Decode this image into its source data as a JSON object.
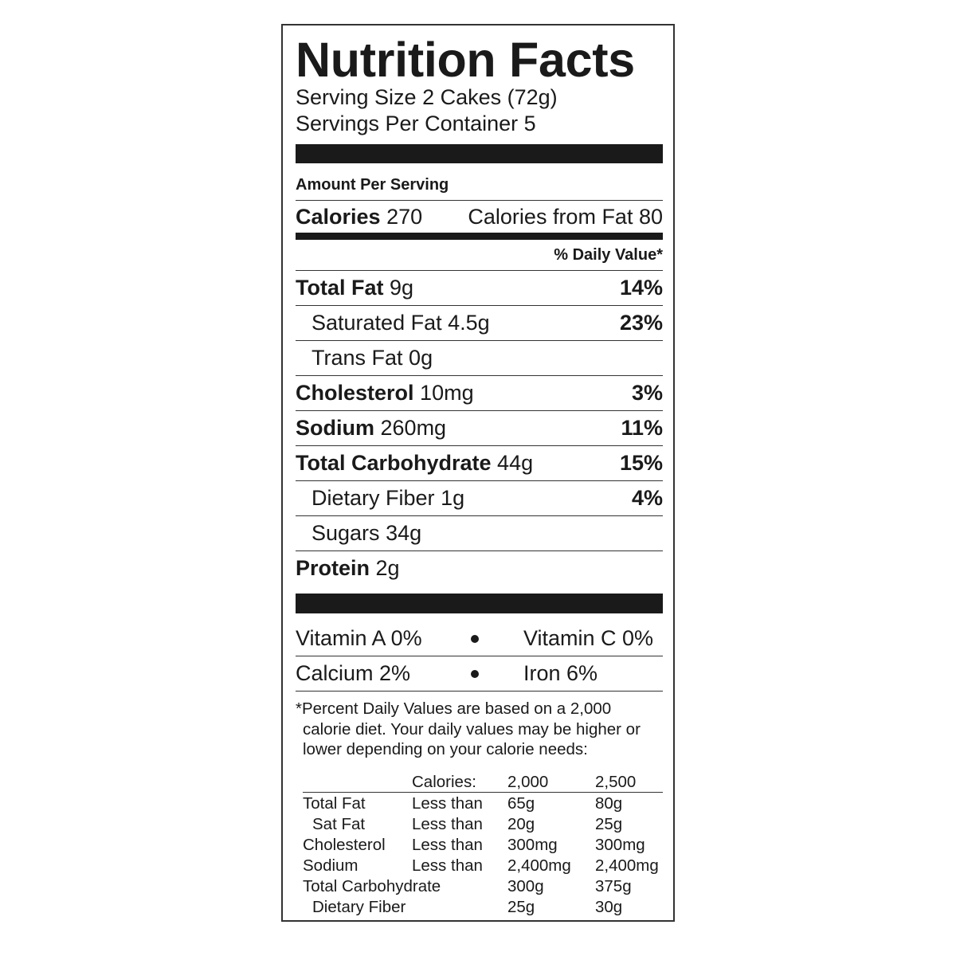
{
  "title": "Nutrition Facts",
  "serving_size": "Serving Size 2 Cakes (72g)",
  "servings_per_container": "Servings Per Container 5",
  "amount_per_serving": "Amount Per Serving",
  "calories": {
    "label": "Calories",
    "value": "270",
    "from_fat": "Calories from Fat 80"
  },
  "daily_value_header": "% Daily Value*",
  "nutrients": [
    {
      "label": "Total Fat",
      "amount": "9g",
      "dv": "14%",
      "bold": true
    },
    {
      "label": "Saturated Fat",
      "amount": "4.5g",
      "dv": "23%",
      "bold": false
    },
    {
      "label": "Trans Fat",
      "amount": "0g",
      "dv": "",
      "bold": false
    },
    {
      "label": "Cholesterol",
      "amount": "10mg",
      "dv": "3%",
      "bold": true
    },
    {
      "label": "Sodium",
      "amount": "260mg",
      "dv": "11%",
      "bold": true
    },
    {
      "label": "Total Carbohydrate",
      "amount": "44g",
      "dv": "15%",
      "bold": true
    },
    {
      "label": "Dietary Fiber",
      "amount": "1g",
      "dv": "4%",
      "bold": false
    },
    {
      "label": "Sugars",
      "amount": "34g",
      "dv": "",
      "bold": false
    },
    {
      "label": "Protein",
      "amount": "2g",
      "dv": "",
      "bold": true
    }
  ],
  "vitamins": [
    {
      "left": "Vitamin A 0%",
      "right": "Vitamin C 0%"
    },
    {
      "left": "Calcium 2%",
      "right": "Iron 6%"
    }
  ],
  "footnote": [
    "*Percent Daily Values are based on a 2,000",
    "calorie diet. Your daily values may be higher or",
    "lower depending on your calorie needs:"
  ],
  "reference_table": {
    "header": [
      "",
      "Calories:",
      "2,000",
      "2,500"
    ],
    "rows": [
      [
        "Total Fat",
        "Less than",
        "65g",
        "80g"
      ],
      [
        "Sat Fat",
        "Less than",
        "20g",
        "25g"
      ],
      [
        "Cholesterol",
        "Less than",
        "300mg",
        "300mg"
      ],
      [
        "Sodium",
        "Less than",
        "2,400mg",
        "2,400mg"
      ],
      [
        "Total Carbohydrate",
        "",
        "300g",
        "375g"
      ],
      [
        "Dietary Fiber",
        "",
        "25g",
        "30g"
      ]
    ]
  }
}
